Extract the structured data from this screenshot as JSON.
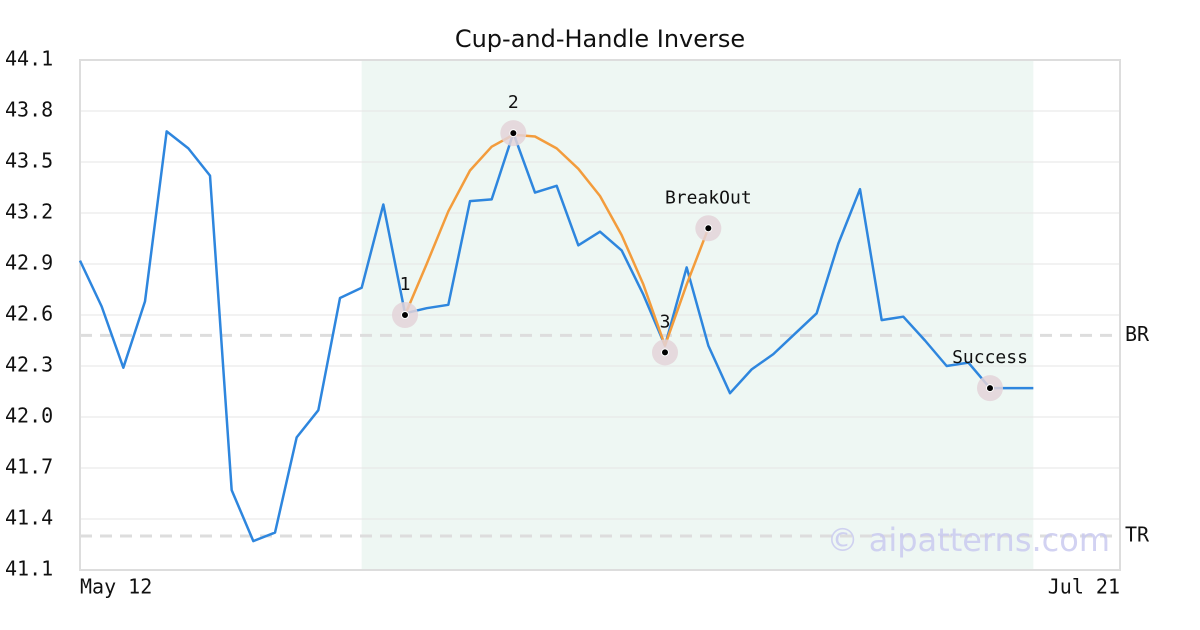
{
  "chart_data": {
    "type": "line",
    "title": "Cup-and-Handle Inverse",
    "x": [
      0,
      1,
      2,
      3,
      4,
      5,
      6,
      7,
      8,
      9,
      10,
      11,
      12,
      13,
      14,
      15,
      16,
      17,
      18,
      19,
      20,
      21,
      22,
      23,
      24,
      25,
      26,
      27,
      28,
      29,
      30,
      31,
      32,
      33,
      34,
      35,
      36,
      37,
      38,
      39,
      40,
      41,
      42,
      43,
      44
    ],
    "xlim": [
      0,
      48
    ],
    "xticks": [
      {
        "value": 0,
        "label": "May 12"
      },
      {
        "value": 48,
        "label": "Jul 21"
      }
    ],
    "ylim": [
      41.1,
      44.1
    ],
    "yticks": [
      41.1,
      41.4,
      41.7,
      {
        "value": 42.0,
        "label": "42.0"
      },
      42.3,
      42.6,
      42.9,
      43.2,
      43.5,
      43.8,
      44.1
    ],
    "grid": true,
    "series": [
      {
        "color": "#2e86de",
        "values": [
          42.92,
          42.65,
          42.29,
          42.68,
          43.68,
          43.58,
          43.42,
          41.57,
          41.27,
          41.32,
          41.88,
          42.04,
          42.7,
          42.76,
          43.25,
          42.61,
          42.64,
          42.66,
          43.27,
          43.28,
          43.67,
          43.32,
          43.36,
          43.01,
          43.09,
          42.98,
          42.72,
          42.42,
          42.88,
          42.42,
          42.14,
          42.28,
          42.37,
          42.49,
          42.61,
          43.02,
          43.34,
          42.57,
          42.59,
          42.45,
          42.3,
          42.32,
          42.17,
          42.17,
          42.17
        ]
      },
      {
        "color": "#f39c3c",
        "x": [
          15,
          16,
          17,
          18,
          19,
          20,
          21,
          22,
          23,
          24,
          25,
          26,
          27,
          28,
          29
        ],
        "values": [
          42.6,
          42.9,
          43.21,
          43.45,
          43.59,
          43.66,
          43.65,
          43.58,
          43.46,
          43.3,
          43.07,
          42.78,
          42.42,
          42.78,
          43.11
        ]
      }
    ],
    "points": [
      {
        "label": "1",
        "x": 15,
        "value": 42.6
      },
      {
        "label": "2",
        "x": 20,
        "value": 43.67
      },
      {
        "label": "3",
        "x": 27,
        "value": 42.38
      },
      {
        "label": "BreakOut",
        "x": 29,
        "value": 43.11
      },
      {
        "label": "Success",
        "x": 42,
        "value": 42.17
      }
    ],
    "hlines": [
      {
        "label": "BR",
        "value": 42.48
      },
      {
        "label": "TR",
        "value": 41.3
      }
    ],
    "highlight": [
      13,
      44
    ],
    "watermark": "© aipatterns.com"
  }
}
